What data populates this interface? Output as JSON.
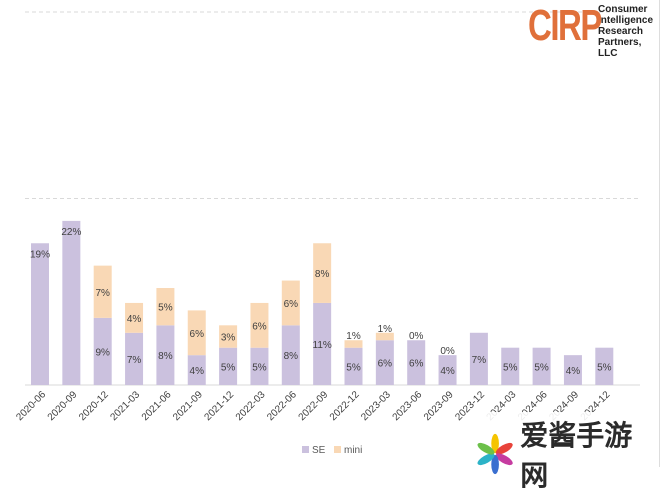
{
  "chart_data": {
    "type": "bar",
    "stacked": true,
    "categories": [
      "2020-06",
      "2020-09",
      "2020-12",
      "2021-03",
      "2021-06",
      "2021-09",
      "2021-12",
      "2022-03",
      "2022-06",
      "2022-09",
      "2022-12",
      "2023-03",
      "2023-06",
      "2023-09",
      "2023-12",
      "2024-03",
      "2024-06",
      "2024-09",
      "2024-12"
    ],
    "series": [
      {
        "name": "SE",
        "color": "#cbc1de",
        "values": [
          19,
          22,
          9,
          7,
          8,
          4,
          5,
          5,
          8,
          11,
          5,
          6,
          6,
          4,
          7,
          5,
          5,
          4,
          5
        ]
      },
      {
        "name": "mini",
        "color": "#f9d8b5",
        "values": [
          null,
          null,
          7,
          4,
          5,
          6,
          3,
          6,
          6,
          8,
          1,
          1,
          0,
          0,
          null,
          null,
          null,
          null,
          null
        ]
      }
    ],
    "ylim": [
      0,
      50
    ],
    "gridlines": [
      25,
      50
    ],
    "grid": true,
    "legend": "bottom-center",
    "label_suffix": "%"
  },
  "logo": {
    "mark": "CIRP",
    "lines": [
      "Consumer",
      "Intelligence",
      "Research",
      "Partners, LLC"
    ]
  },
  "watermark": {
    "text": "爱酱手游网"
  }
}
